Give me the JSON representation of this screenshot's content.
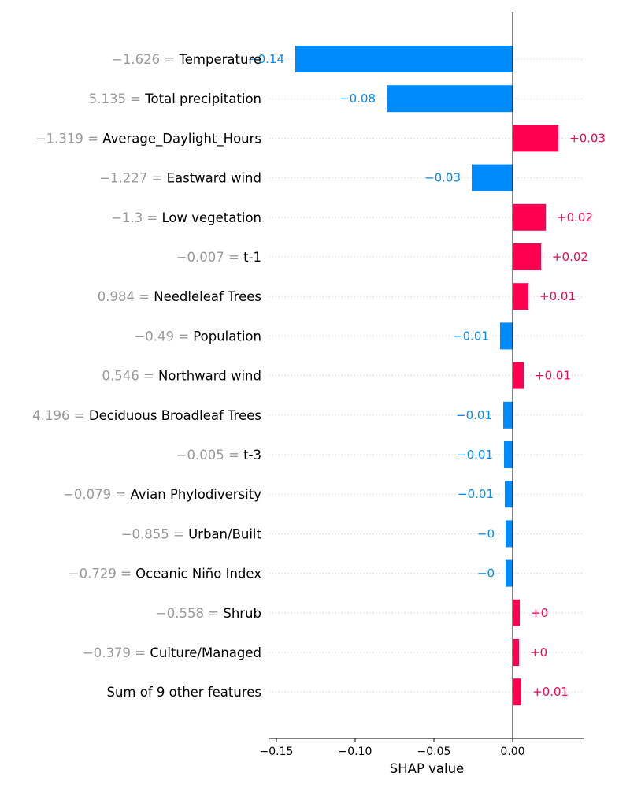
{
  "chart_data": {
    "type": "bar",
    "orientation": "horizontal",
    "xlabel": "SHAP value",
    "xlim": [
      -0.1545,
      0.0455
    ],
    "xticks": [
      -0.15,
      -0.1,
      -0.05,
      0.0
    ],
    "xtick_labels": [
      "−0.15",
      "−0.10",
      "−0.05",
      "0.00"
    ],
    "grid": "dotted horizontal per row",
    "colors": {
      "positive": "#ff0051",
      "negative": "#008bfb"
    },
    "features": [
      {
        "value": "−1.626 =",
        "name": "Temperature",
        "shap": -0.138,
        "label": "−0.14"
      },
      {
        "value": "5.135 =",
        "name": "Total precipitation",
        "shap": -0.08,
        "label": "−0.08"
      },
      {
        "value": "−1.319 =",
        "name": "Average_Daylight_Hours",
        "shap": 0.029,
        "label": "+0.03"
      },
      {
        "value": "−1.227 =",
        "name": "Eastward wind",
        "shap": -0.026,
        "label": "−0.03"
      },
      {
        "value": "−1.3 =",
        "name": "Low vegetation",
        "shap": 0.021,
        "label": "+0.02"
      },
      {
        "value": "−0.007 =",
        "name": "t-1",
        "shap": 0.018,
        "label": "+0.02"
      },
      {
        "value": "0.984 =",
        "name": "Needleleaf Trees",
        "shap": 0.01,
        "label": "+0.01"
      },
      {
        "value": "−0.49 =",
        "name": "Population",
        "shap": -0.008,
        "label": "−0.01"
      },
      {
        "value": "0.546 =",
        "name": "Northward wind",
        "shap": 0.007,
        "label": "+0.01"
      },
      {
        "value": "4.196 =",
        "name": "Deciduous Broadleaf Trees",
        "shap": -0.006,
        "label": "−0.01"
      },
      {
        "value": "−0.005 =",
        "name": "t-3",
        "shap": -0.0055,
        "label": "−0.01"
      },
      {
        "value": "−0.079 =",
        "name": "Avian Phylodiversity",
        "shap": -0.005,
        "label": "−0.01"
      },
      {
        "value": "−0.855 =",
        "name": "Urban/Built",
        "shap": -0.0045,
        "label": "−0"
      },
      {
        "value": "−0.729 =",
        "name": "Oceanic Niño Index",
        "shap": -0.0045,
        "label": "−0"
      },
      {
        "value": "−0.558 =",
        "name": "Shrub",
        "shap": 0.0045,
        "label": "+0"
      },
      {
        "value": "−0.379 =",
        "name": "Culture/Managed",
        "shap": 0.004,
        "label": "+0"
      },
      {
        "value": "",
        "name": "Sum of 9 other features",
        "shap": 0.0055,
        "label": "+0.01"
      }
    ]
  }
}
